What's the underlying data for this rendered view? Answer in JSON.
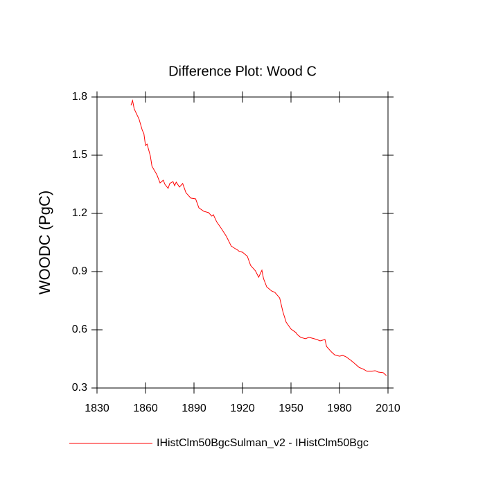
{
  "chart_data": {
    "type": "line",
    "title": "Difference Plot: Wood C",
    "ylabel": "WOODC  (PgC)",
    "x": [
      1851,
      1852,
      1853,
      1856,
      1858,
      1859,
      1860,
      1861,
      1863,
      1864,
      1867,
      1869,
      1871,
      1872,
      1874,
      1875,
      1877,
      1878,
      1879,
      1881,
      1883,
      1885,
      1888,
      1891,
      1893,
      1896,
      1899,
      1901,
      1902,
      1904,
      1907,
      1910,
      1913,
      1915,
      1917,
      1918,
      1920,
      1923,
      1925,
      1928,
      1930,
      1932,
      1933,
      1935,
      1938,
      1940,
      1943,
      1945,
      1947,
      1950,
      1953,
      1954,
      1956,
      1959,
      1961,
      1963,
      1966,
      1968,
      1971,
      1972,
      1975,
      1977,
      1980,
      1982,
      1984,
      1987,
      1989,
      1992,
      1995,
      1997,
      2000,
      2002,
      2004,
      2007,
      2009
    ],
    "series": [
      {
        "name": "IHistClm50BgcSulman_v2 - IHistClm50Bgc",
        "color": "#ff0000",
        "values": [
          1.757,
          1.782,
          1.739,
          1.686,
          1.629,
          1.611,
          1.55,
          1.557,
          1.496,
          1.443,
          1.4,
          1.357,
          1.371,
          1.35,
          1.329,
          1.354,
          1.364,
          1.343,
          1.361,
          1.336,
          1.354,
          1.307,
          1.279,
          1.275,
          1.229,
          1.211,
          1.204,
          1.186,
          1.193,
          1.157,
          1.121,
          1.082,
          1.032,
          1.021,
          1.011,
          1.004,
          1.0,
          0.979,
          0.932,
          0.904,
          0.871,
          0.907,
          0.864,
          0.821,
          0.8,
          0.793,
          0.764,
          0.693,
          0.639,
          0.604,
          0.586,
          0.575,
          0.561,
          0.554,
          0.561,
          0.557,
          0.55,
          0.543,
          0.55,
          0.514,
          0.486,
          0.471,
          0.464,
          0.468,
          0.461,
          0.443,
          0.429,
          0.407,
          0.396,
          0.386,
          0.386,
          0.389,
          0.382,
          0.379,
          0.364
        ]
      }
    ],
    "xlim": [
      1830,
      2010
    ],
    "xticks": [
      1830,
      1860,
      1890,
      1920,
      1950,
      1980,
      2010
    ],
    "ylim": [
      0.3,
      1.8
    ],
    "yticks": [
      0.3,
      0.6,
      0.9,
      1.2,
      1.5,
      1.8
    ]
  }
}
